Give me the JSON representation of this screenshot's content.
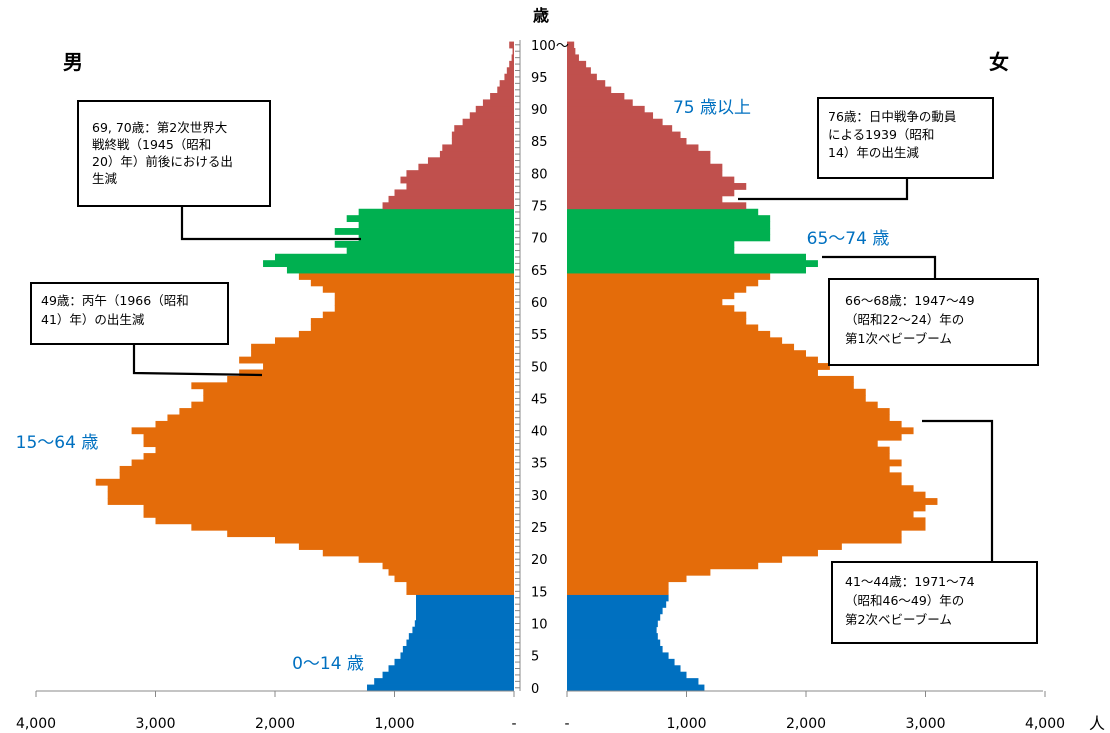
{
  "chart_data": {
    "type": "bar",
    "orientation": "horizontal-butterfly",
    "title": "",
    "age_axis_title": "歳",
    "unit_label": "人",
    "left_series_name": "男",
    "right_series_name": "女",
    "xlim": [
      0,
      4000
    ],
    "ages": [
      0,
      1,
      2,
      3,
      4,
      5,
      6,
      7,
      8,
      9,
      10,
      11,
      12,
      13,
      14,
      15,
      16,
      17,
      18,
      19,
      20,
      21,
      22,
      23,
      24,
      25,
      26,
      27,
      28,
      29,
      30,
      31,
      32,
      33,
      34,
      35,
      36,
      37,
      38,
      39,
      40,
      41,
      42,
      43,
      44,
      45,
      46,
      47,
      48,
      49,
      50,
      51,
      52,
      53,
      54,
      55,
      56,
      57,
      58,
      59,
      60,
      61,
      62,
      63,
      64,
      65,
      66,
      67,
      68,
      69,
      70,
      71,
      72,
      73,
      74,
      75,
      76,
      77,
      78,
      79,
      80,
      81,
      82,
      83,
      84,
      85,
      86,
      87,
      88,
      89,
      90,
      91,
      92,
      93,
      94,
      95,
      96,
      97,
      98,
      99,
      100
    ],
    "age_tick_labels": [
      "0",
      "5",
      "10",
      "15",
      "20",
      "25",
      "30",
      "35",
      "40",
      "45",
      "50",
      "55",
      "60",
      "65",
      "70",
      "75",
      "80",
      "85",
      "90",
      "95",
      "100〜"
    ],
    "x_tick_labels_left": [
      "4,000",
      "3,000",
      "2,000",
      "1,000",
      "-"
    ],
    "x_tick_labels_right": [
      "-",
      "1,000",
      "2,000",
      "3,000",
      "4,000"
    ],
    "male": [
      1230,
      1170,
      1100,
      1050,
      1000,
      950,
      930,
      900,
      880,
      850,
      830,
      820,
      820,
      820,
      820,
      900,
      900,
      1000,
      1050,
      1100,
      1300,
      1600,
      1800,
      2000,
      2400,
      2700,
      3000,
      3100,
      3100,
      3400,
      3400,
      3400,
      3500,
      3300,
      3300,
      3200,
      3100,
      3000,
      3100,
      3100,
      3200,
      3000,
      2900,
      2800,
      2700,
      2600,
      2600,
      2700,
      2400,
      2300,
      2100,
      2300,
      2200,
      2200,
      2000,
      1800,
      1700,
      1700,
      1600,
      1500,
      1500,
      1500,
      1600,
      1700,
      1800,
      1900,
      2100,
      2000,
      1400,
      1500,
      1300,
      1500,
      1300,
      1400,
      1300,
      1100,
      1050,
      1000,
      900,
      950,
      900,
      800,
      720,
      620,
      600,
      520,
      520,
      500,
      430,
      370,
      320,
      260,
      200,
      140,
      120,
      80,
      60,
      40,
      20,
      12,
      40
    ],
    "female": [
      1150,
      1100,
      1000,
      950,
      900,
      850,
      800,
      780,
      760,
      750,
      760,
      780,
      800,
      830,
      850,
      850,
      850,
      1000,
      1200,
      1600,
      1800,
      2100,
      2300,
      2800,
      2800,
      3000,
      3000,
      2900,
      3000,
      3100,
      3000,
      2900,
      2800,
      2800,
      2700,
      2800,
      2700,
      2700,
      2600,
      2800,
      2900,
      2800,
      2700,
      2700,
      2600,
      2500,
      2500,
      2400,
      2400,
      2100,
      2200,
      2100,
      2000,
      1900,
      1800,
      1700,
      1600,
      1500,
      1500,
      1400,
      1300,
      1400,
      1500,
      1600,
      1700,
      2000,
      2100,
      2000,
      1400,
      1400,
      1700,
      1700,
      1700,
      1700,
      1600,
      1500,
      1300,
      1400,
      1500,
      1400,
      1300,
      1300,
      1200,
      1200,
      1100,
      1000,
      950,
      880,
      800,
      720,
      650,
      550,
      480,
      370,
      320,
      250,
      200,
      160,
      100,
      70,
      60
    ],
    "age_groups": [
      {
        "label": "0〜14 歳",
        "from": 0,
        "to": 14,
        "color": "#0070C0"
      },
      {
        "label": "15〜64 歳",
        "from": 15,
        "to": 64,
        "color": "#E46C0A"
      },
      {
        "label": "65〜74 歳",
        "from": 65,
        "to": 74,
        "color": "#00B050"
      },
      {
        "label": "75 歳以上",
        "from": 75,
        "to": 100,
        "color": "#C0504D"
      }
    ],
    "annotations": [
      {
        "id": "note-69-70",
        "lines": [
          "69, 70歳：第2次世界大",
          "戦終戦（1945（昭和",
          "20）年）前後における出",
          "生減"
        ]
      },
      {
        "id": "note-49",
        "lines": [
          "49歳：丙午（1966（昭和",
          "41）年）の出生減"
        ]
      },
      {
        "id": "note-76",
        "lines": [
          "76歳：日中戦争の動員",
          "による1939（昭和",
          "14）年の出生減"
        ]
      },
      {
        "id": "note-66-68",
        "lines": [
          "66〜68歳：1947〜49",
          "（昭和22〜24）年の",
          "第1次ベビーブーム"
        ]
      },
      {
        "id": "note-41-44",
        "lines": [
          "41〜44歳：1971〜74",
          "（昭和46〜49）年の",
          "第2次ベビーブーム"
        ]
      }
    ]
  }
}
